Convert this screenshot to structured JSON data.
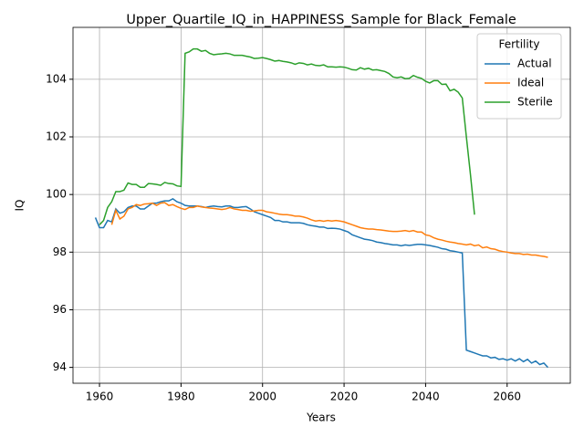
{
  "chart_data": {
    "type": "line",
    "title": "Upper_Quartile_IQ_in_HAPPINESS_Sample for Black_Female",
    "x_label": "Years",
    "y_label": "IQ",
    "x": [
      1959,
      1960,
      1961,
      1962,
      1963,
      1964,
      1965,
      1966,
      1967,
      1968,
      1969,
      1970,
      1971,
      1972,
      1973,
      1974,
      1975,
      1976,
      1977,
      1978,
      1979,
      1980,
      1981,
      1982,
      1983,
      1984,
      1985,
      1986,
      1987,
      1988,
      1989,
      1990,
      1991,
      1992,
      1993,
      1994,
      1995,
      1996,
      1997,
      1998,
      1999,
      2000,
      2001,
      2002,
      2003,
      2004,
      2005,
      2006,
      2007,
      2008,
      2009,
      2010,
      2011,
      2012,
      2013,
      2014,
      2015,
      2016,
      2017,
      2018,
      2019,
      2020,
      2021,
      2022,
      2023,
      2024,
      2025,
      2026,
      2027,
      2028,
      2029,
      2030,
      2031,
      2032,
      2033,
      2034,
      2035,
      2036,
      2037,
      2038,
      2039,
      2040,
      2041,
      2042,
      2043,
      2044,
      2045,
      2046,
      2047,
      2048,
      2049,
      2050,
      2051,
      2052,
      2053,
      2054,
      2055,
      2056,
      2057,
      2058,
      2059,
      2060,
      2061,
      2062,
      2063,
      2064,
      2065,
      2066,
      2067,
      2068,
      2069,
      2070
    ],
    "series": [
      {
        "name": "Actual",
        "color": "#1f77b4",
        "values": [
          99.2,
          98.85,
          98.85,
          99.1,
          99.05,
          99.5,
          99.35,
          99.4,
          99.55,
          99.6,
          99.6,
          99.5,
          99.5,
          99.6,
          99.7,
          99.7,
          99.75,
          99.78,
          99.78,
          99.85,
          99.75,
          99.7,
          99.62,
          99.6,
          99.6,
          99.6,
          99.58,
          99.55,
          99.58,
          99.6,
          99.58,
          99.57,
          99.6,
          99.6,
          99.55,
          99.55,
          99.57,
          99.58,
          99.5,
          99.4,
          99.35,
          99.3,
          99.25,
          99.2,
          99.1,
          99.1,
          99.05,
          99.05,
          99.02,
          99.02,
          99.02,
          99.0,
          98.95,
          98.92,
          98.9,
          98.87,
          98.87,
          98.82,
          98.83,
          98.82,
          98.8,
          98.75,
          98.7,
          98.6,
          98.55,
          98.5,
          98.45,
          98.43,
          98.4,
          98.35,
          98.33,
          98.3,
          98.28,
          98.25,
          98.25,
          98.22,
          98.25,
          98.23,
          98.25,
          98.27,
          98.27,
          98.25,
          98.23,
          98.2,
          98.17,
          98.12,
          98.1,
          98.05,
          98.03,
          98.0,
          97.97,
          94.6,
          94.55,
          94.5,
          94.45,
          94.4,
          94.4,
          94.33,
          94.35,
          94.28,
          94.3,
          94.25,
          94.3,
          94.22,
          94.3,
          94.2,
          94.28,
          94.15,
          94.22,
          94.1,
          94.15,
          94.0
        ]
      },
      {
        "name": "Ideal",
        "color": "#ff7f0e",
        "values": [
          null,
          null,
          null,
          null,
          98.95,
          99.45,
          99.15,
          99.25,
          99.5,
          99.55,
          99.65,
          99.62,
          99.67,
          99.68,
          99.7,
          99.62,
          99.7,
          99.72,
          99.62,
          99.65,
          99.58,
          99.52,
          99.48,
          99.55,
          99.55,
          99.6,
          99.57,
          99.55,
          99.53,
          99.52,
          99.5,
          99.48,
          99.5,
          99.55,
          99.5,
          99.48,
          99.45,
          99.45,
          99.42,
          99.43,
          99.45,
          99.45,
          99.4,
          99.38,
          99.35,
          99.32,
          99.3,
          99.3,
          99.28,
          99.25,
          99.25,
          99.22,
          99.18,
          99.12,
          99.08,
          99.1,
          99.07,
          99.1,
          99.08,
          99.1,
          99.08,
          99.05,
          99.0,
          98.95,
          98.9,
          98.85,
          98.82,
          98.8,
          98.8,
          98.78,
          98.77,
          98.75,
          98.73,
          98.72,
          98.72,
          98.73,
          98.75,
          98.72,
          98.75,
          98.7,
          98.7,
          98.6,
          98.57,
          98.5,
          98.45,
          98.42,
          98.38,
          98.35,
          98.33,
          98.3,
          98.28,
          98.25,
          98.28,
          98.22,
          98.25,
          98.15,
          98.18,
          98.12,
          98.1,
          98.05,
          98.02,
          98.0,
          97.97,
          97.95,
          97.95,
          97.92,
          97.93,
          97.9,
          97.9,
          97.87,
          97.85,
          97.82
        ]
      },
      {
        "name": "Sterile",
        "color": "#2ca02c",
        "values": [
          null,
          98.95,
          99.1,
          99.55,
          99.75,
          100.1,
          100.1,
          100.15,
          100.4,
          100.35,
          100.35,
          100.25,
          100.25,
          100.38,
          100.37,
          100.35,
          100.32,
          100.42,
          100.38,
          100.37,
          100.3,
          100.28,
          104.9,
          104.95,
          105.05,
          105.05,
          104.97,
          105.0,
          104.9,
          104.85,
          104.87,
          104.88,
          104.9,
          104.88,
          104.83,
          104.83,
          104.83,
          104.8,
          104.77,
          104.72,
          104.73,
          104.75,
          104.72,
          104.68,
          104.63,
          104.65,
          104.62,
          104.6,
          104.57,
          104.52,
          104.57,
          104.55,
          104.5,
          104.53,
          104.48,
          104.47,
          104.5,
          104.43,
          104.43,
          104.42,
          104.43,
          104.42,
          104.38,
          104.33,
          104.32,
          104.4,
          104.35,
          104.38,
          104.32,
          104.33,
          104.3,
          104.27,
          104.2,
          104.08,
          104.05,
          104.08,
          104.02,
          104.03,
          104.13,
          104.07,
          104.03,
          103.93,
          103.87,
          103.95,
          103.95,
          103.82,
          103.83,
          103.6,
          103.65,
          103.55,
          103.35,
          102.0,
          100.7,
          99.3,
          null,
          null,
          null,
          null,
          null,
          null,
          null,
          null,
          null,
          null,
          null,
          null,
          null,
          null,
          null,
          null,
          null,
          null
        ]
      }
    ],
    "xlim": [
      1953.5,
      2075.5
    ],
    "ylim": [
      93.45,
      105.8
    ],
    "xticks": [
      1960,
      1980,
      2000,
      2020,
      2040,
      2060
    ],
    "yticks": [
      94,
      96,
      98,
      100,
      102,
      104
    ],
    "grid": true,
    "legend_title": "Fertility",
    "legend_loc": "upper right"
  }
}
